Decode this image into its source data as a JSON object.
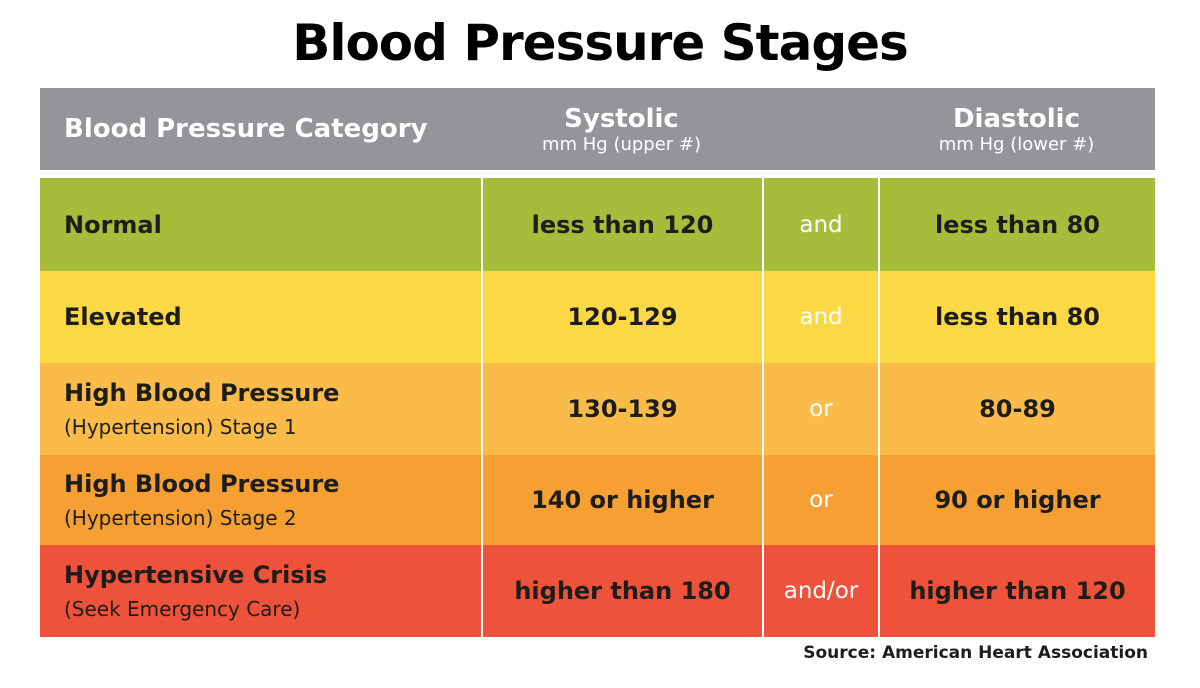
{
  "title": "Blood Pressure Stages",
  "table": {
    "header": [
      {
        "title": "Blood Pressure Category"
      },
      {
        "title": "Systolic",
        "subtitle": "mm Hg (upper #)"
      },
      {
        "title": "Diastolic",
        "subtitle": "mm Hg (lower #)"
      }
    ],
    "rows": [
      {
        "category": "Normal",
        "systolic": "less than 120",
        "connector": "and",
        "diastolic": "less than 80"
      },
      {
        "category": "Elevated",
        "systolic": "120-129",
        "connector": "and",
        "diastolic": "less than 80"
      },
      {
        "category": "High Blood Pressure",
        "note": "(Hypertension) Stage 1",
        "systolic": "130-139",
        "connector": "or",
        "diastolic": "80-89"
      },
      {
        "category": "High Blood Pressure",
        "note": "(Hypertension) Stage 2",
        "systolic": "140 or higher",
        "connector": "or",
        "diastolic": "90 or higher"
      },
      {
        "category": "Hypertensive Crisis",
        "note": "(Seek Emergency Care)",
        "systolic": "higher than 180",
        "connector": "and/or",
        "diastolic": "higher than 120"
      }
    ]
  },
  "source": "Source: American Heart Association"
}
